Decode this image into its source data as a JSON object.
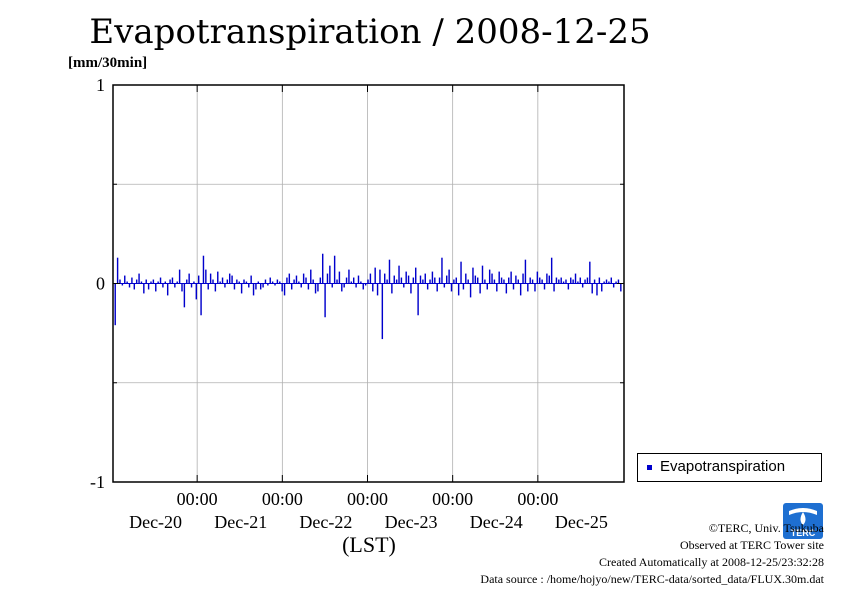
{
  "title": "Evapotranspiration / 2008-12-25",
  "unit_label": "[mm/30min]",
  "legend": {
    "label": "Evapotranspiration",
    "color": "#0000cc"
  },
  "footer": {
    "copyright": "©TERC, Univ. Tsukuba",
    "site": "Observed at TERC Tower site",
    "created": "Created Automatically at 2008-12-25/23:32:28",
    "source": "Data source : /home/hojyo/new/TERC-data/sorted_data/FLUX.30m.dat"
  },
  "logo_text": "TERC",
  "chart_data": {
    "type": "bar",
    "xlabel": "(LST)",
    "ylim": [
      -1,
      1
    ],
    "yticks": [
      "1",
      "0",
      "-1"
    ],
    "xticks": [
      {
        "time": "00:00",
        "date": "Dec-20"
      },
      {
        "time": "00:00",
        "date": "Dec-21"
      },
      {
        "time": "00:00",
        "date": "Dec-22"
      },
      {
        "time": "00:00",
        "date": "Dec-23"
      },
      {
        "time": "00:00",
        "date": "Dec-24"
      },
      {
        "time": "",
        "date": "Dec-25"
      }
    ],
    "grid": true,
    "legend_position": "bottom-right",
    "series": [
      {
        "name": "Evapotranspiration",
        "color": "#0000cc",
        "values": [
          -0.21,
          0.13,
          0.02,
          -0.01,
          0.04,
          0.01,
          -0.02,
          0.03,
          -0.03,
          0.02,
          0.05,
          0.01,
          -0.05,
          0.02,
          -0.03,
          0.01,
          0.02,
          -0.04,
          0.01,
          0.03,
          -0.02,
          0.01,
          -0.06,
          0.02,
          0.03,
          -0.02,
          0.01,
          0.07,
          -0.04,
          -0.12,
          0.02,
          0.05,
          -0.02,
          0.01,
          -0.08,
          0.04,
          -0.16,
          0.14,
          0.07,
          -0.03,
          0.05,
          0.02,
          -0.04,
          0.06,
          0.01,
          0.03,
          -0.02,
          0.02,
          0.05,
          0.04,
          -0.03,
          0.02,
          0.01,
          -0.05,
          0.02,
          0.01,
          -0.02,
          0.04,
          -0.06,
          -0.03,
          0.01,
          -0.03,
          -0.02,
          0.02,
          -0.01,
          0.03,
          0.01,
          -0.01,
          0.02,
          0.01,
          -0.04,
          -0.06,
          0.03,
          0.05,
          -0.03,
          0.02,
          0.04,
          0.01,
          -0.02,
          0.05,
          0.03,
          -0.03,
          0.07,
          0.02,
          -0.05,
          -0.04,
          0.03,
          0.15,
          -0.17,
          0.05,
          0.09,
          -0.02,
          0.14,
          0.02,
          0.06,
          -0.04,
          -0.02,
          0.03,
          0.07,
          0.01,
          0.03,
          -0.02,
          0.04,
          0.01,
          -0.03,
          -0.01,
          0.02,
          0.05,
          -0.04,
          0.08,
          -0.06,
          0.07,
          -0.28,
          0.05,
          0.02,
          0.12,
          -0.05,
          0.04,
          0.02,
          0.09,
          0.03,
          -0.02,
          0.06,
          0.04,
          -0.05,
          0.03,
          0.08,
          -0.16,
          0.04,
          0.02,
          0.05,
          -0.03,
          0.02,
          0.06,
          0.03,
          -0.04,
          0.03,
          0.13,
          -0.02,
          0.04,
          0.07,
          -0.04,
          0.02,
          0.03,
          -0.06,
          0.11,
          -0.03,
          0.05,
          0.02,
          -0.07,
          0.08,
          0.04,
          0.03,
          -0.05,
          0.09,
          0.02,
          -0.03,
          0.07,
          0.05,
          0.02,
          -0.04,
          0.06,
          0.03,
          0.02,
          -0.05,
          0.03,
          0.06,
          -0.03,
          0.04,
          0.02,
          -0.06,
          0.05,
          0.12,
          -0.04,
          0.03,
          0.02,
          -0.04,
          0.06,
          0.03,
          0.02,
          -0.03,
          0.05,
          0.04,
          0.13,
          -0.04,
          0.03,
          0.02,
          0.03,
          0.01,
          0.02,
          -0.03,
          0.03,
          0.02,
          0.05,
          0.01,
          0.03,
          -0.02,
          0.02,
          0.03,
          0.11,
          -0.05,
          0.02,
          -0.06,
          0.03,
          -0.04,
          0.01,
          0.02,
          0.01,
          0.03,
          -0.02,
          0.01,
          0.02,
          -0.04
        ]
      }
    ]
  }
}
